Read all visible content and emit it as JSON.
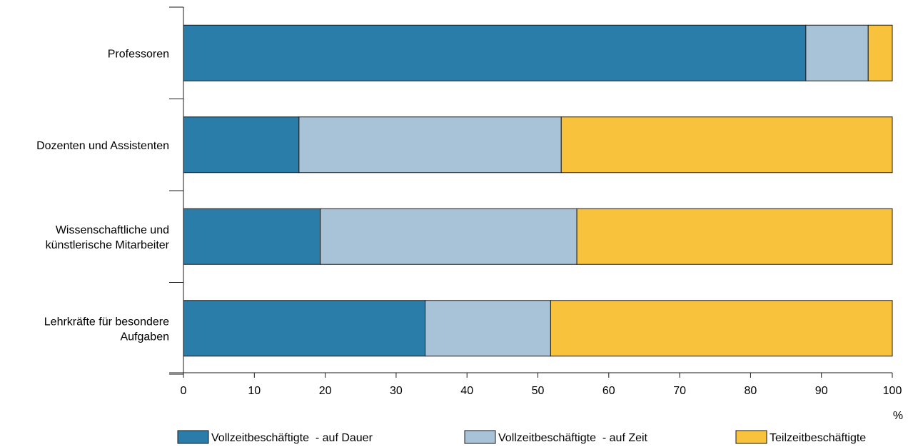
{
  "chart_data": {
    "type": "bar",
    "orientation": "horizontal",
    "stacked": true,
    "categories": [
      [
        "Professoren"
      ],
      [
        "Dozenten und Assistenten"
      ],
      [
        "Wissenschaftliche und",
        "künstlerische Mitarbeiter"
      ],
      [
        "Lehrkräfte für besondere",
        "Aufgaben"
      ]
    ],
    "series": [
      {
        "name": "Vollzeitbeschäftigte  - auf Dauer",
        "color": "#2a7ca9",
        "values": [
          87.8,
          16.3,
          19.3,
          34.1
        ]
      },
      {
        "name": "Vollzeitbeschäftigte  - auf Zeit",
        "color": "#a8c3d7",
        "values": [
          8.8,
          37.0,
          36.2,
          17.7
        ]
      },
      {
        "name": "Teilzeitbeschäftigte",
        "color": "#f8c23d",
        "values": [
          3.4,
          46.7,
          44.5,
          48.2
        ]
      }
    ],
    "xlim": [
      0,
      100
    ],
    "xticks": [
      "0",
      "10",
      "20",
      "30",
      "40",
      "50",
      "60",
      "70",
      "80",
      "90",
      "100"
    ],
    "xunit": "%",
    "title": "",
    "xlabel": "",
    "ylabel": "",
    "grid": false,
    "legend_position": "bottom"
  }
}
